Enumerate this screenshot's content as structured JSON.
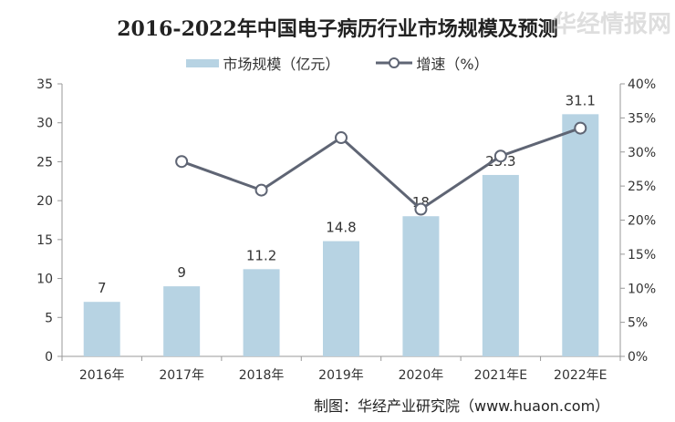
{
  "chart_data": {
    "type": "bar",
    "title": "2016-2022年中国电子病历行业市场规模及预测",
    "categories": [
      "2016年",
      "2017年",
      "2018年",
      "2019年",
      "2020年",
      "2021年E",
      "2022年E"
    ],
    "series": [
      {
        "name": "市场规模（亿元）",
        "type": "bar",
        "axis": "left",
        "color": "#b7d3e3",
        "values": [
          7,
          9,
          11.2,
          14.8,
          18,
          23.3,
          31.1
        ],
        "labels": [
          "7",
          "9",
          "11.2",
          "14.8",
          "18",
          "23.3",
          "31.1"
        ]
      },
      {
        "name": "增速（%）",
        "type": "line",
        "axis": "right",
        "color": "#5f6574",
        "values": [
          null,
          28.6,
          24.4,
          32.1,
          21.6,
          29.4,
          33.5
        ]
      }
    ],
    "ylim": [
      0,
      35
    ],
    "yticks": [
      "0",
      "5",
      "10",
      "15",
      "20",
      "25",
      "30",
      "35"
    ],
    "y2lim": [
      0,
      40
    ],
    "y2ticks": [
      "0%",
      "5%",
      "10%",
      "15%",
      "20%",
      "25%",
      "30%",
      "35%",
      "40%"
    ],
    "legend": "top-center",
    "source": "制图：华经产业研究院（www.huaon.com）"
  },
  "watermark": "华经情报网"
}
